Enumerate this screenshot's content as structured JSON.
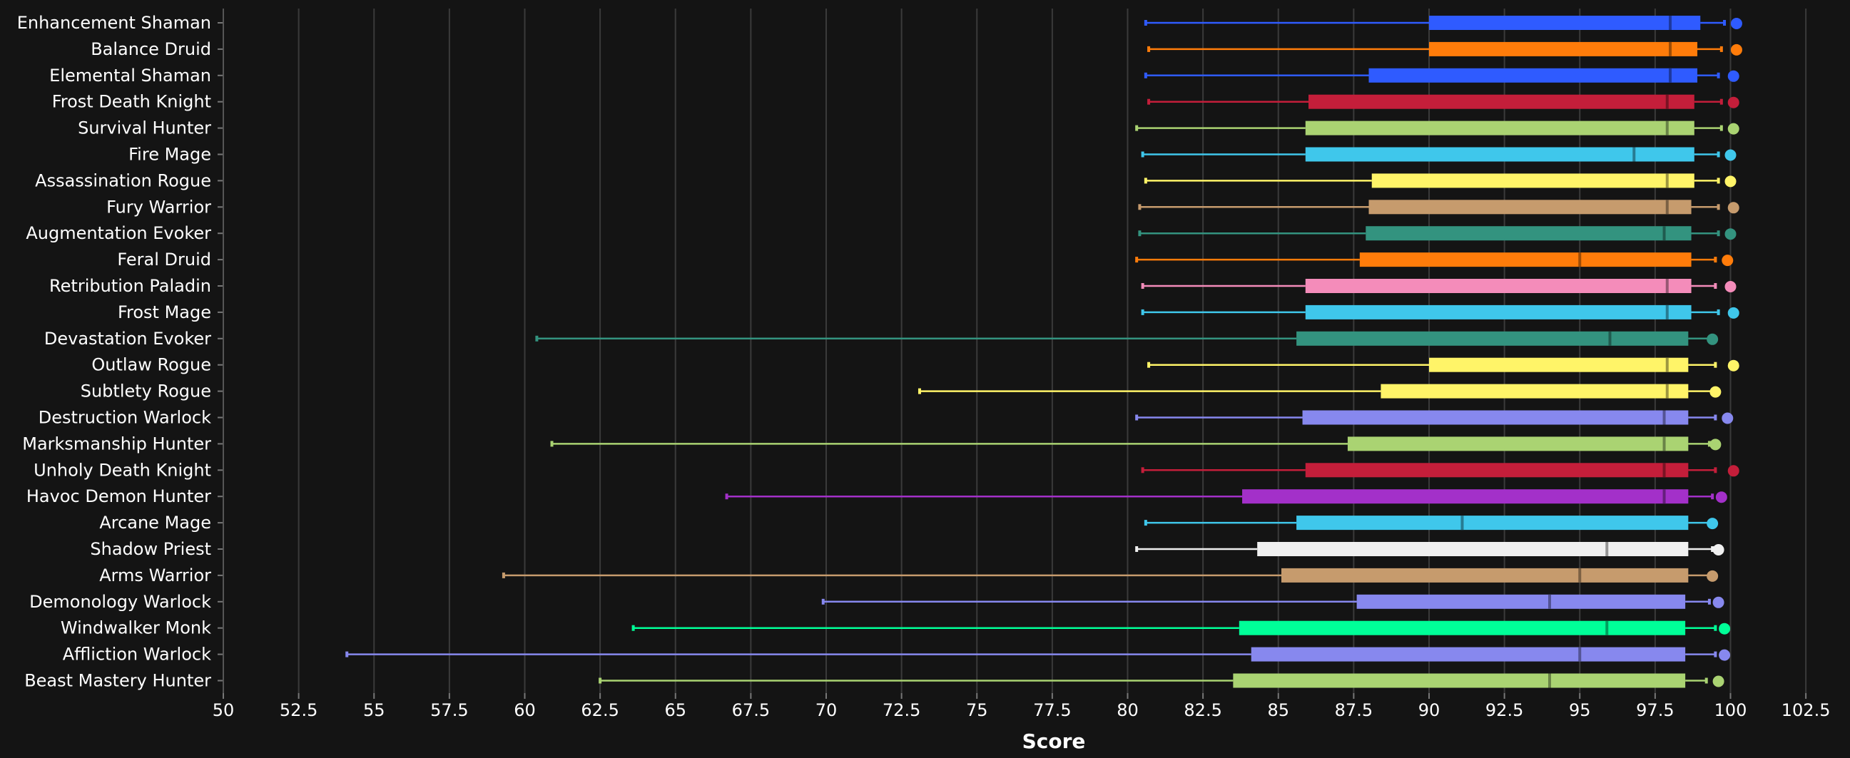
{
  "chart_data": {
    "type": "box",
    "xlabel": "Score",
    "title": "",
    "xlim": [
      50,
      102.5
    ],
    "xticks": [
      "50",
      "52.5",
      "55",
      "57.5",
      "60",
      "62.5",
      "65",
      "67.5",
      "70",
      "72.5",
      "75",
      "77.5",
      "80",
      "82.5",
      "85",
      "87.5",
      "90",
      "92.5",
      "95",
      "97.5",
      "100",
      "102.5"
    ],
    "grid": true,
    "series": [
      {
        "name": "Enhancement Shaman",
        "color": "#2f5bff",
        "min": 80.6,
        "q1": 90.0,
        "median": 98.0,
        "q3": 99.0,
        "max": 99.8,
        "max_point": 100.2
      },
      {
        "name": "Balance Druid",
        "color": "#ff7c0a",
        "min": 80.7,
        "q1": 90.0,
        "median": 98.0,
        "q3": 98.9,
        "max": 99.7,
        "max_point": 100.2
      },
      {
        "name": "Elemental Shaman",
        "color": "#2f5bff",
        "min": 80.6,
        "q1": 88.0,
        "median": 98.0,
        "q3": 98.9,
        "max": 99.6,
        "max_point": 100.1
      },
      {
        "name": "Frost Death Knight",
        "color": "#c41e3a",
        "min": 80.7,
        "q1": 86.0,
        "median": 97.9,
        "q3": 98.8,
        "max": 99.7,
        "max_point": 100.1
      },
      {
        "name": "Survival Hunter",
        "color": "#aad372",
        "min": 80.3,
        "q1": 85.9,
        "median": 97.9,
        "q3": 98.8,
        "max": 99.7,
        "max_point": 100.1
      },
      {
        "name": "Fire Mage",
        "color": "#3fc7eb",
        "min": 80.5,
        "q1": 85.9,
        "median": 96.8,
        "q3": 98.8,
        "max": 99.6,
        "max_point": 100.0
      },
      {
        "name": "Assassination Rogue",
        "color": "#fff468",
        "min": 80.6,
        "q1": 88.1,
        "median": 97.9,
        "q3": 98.8,
        "max": 99.6,
        "max_point": 100.0
      },
      {
        "name": "Fury Warrior",
        "color": "#c69b6d",
        "min": 80.4,
        "q1": 88.0,
        "median": 97.9,
        "q3": 98.7,
        "max": 99.6,
        "max_point": 100.1
      },
      {
        "name": "Augmentation Evoker",
        "color": "#33937f",
        "min": 80.4,
        "q1": 87.9,
        "median": 97.8,
        "q3": 98.7,
        "max": 99.6,
        "max_point": 100.0
      },
      {
        "name": "Feral Druid",
        "color": "#ff7c0a",
        "min": 80.3,
        "q1": 87.7,
        "median": 95.0,
        "q3": 98.7,
        "max": 99.5,
        "max_point": 99.9
      },
      {
        "name": "Retribution Paladin",
        "color": "#f48cba",
        "min": 80.5,
        "q1": 85.9,
        "median": 97.9,
        "q3": 98.7,
        "max": 99.5,
        "max_point": 100.0
      },
      {
        "name": "Frost Mage",
        "color": "#3fc7eb",
        "min": 80.5,
        "q1": 85.9,
        "median": 97.9,
        "q3": 98.7,
        "max": 99.6,
        "max_point": 100.1
      },
      {
        "name": "Devastation Evoker",
        "color": "#33937f",
        "min": 60.4,
        "q1": 85.6,
        "median": 96.0,
        "q3": 98.6,
        "max": 99.4,
        "max_point": 99.4
      },
      {
        "name": "Outlaw Rogue",
        "color": "#fff468",
        "min": 80.7,
        "q1": 90.0,
        "median": 97.9,
        "q3": 98.6,
        "max": 99.5,
        "max_point": 100.1
      },
      {
        "name": "Subtlety Rogue",
        "color": "#fff468",
        "min": 73.1,
        "q1": 88.4,
        "median": 97.9,
        "q3": 98.6,
        "max": 99.4,
        "max_point": 99.5
      },
      {
        "name": "Destruction Warlock",
        "color": "#8788ee",
        "min": 80.3,
        "q1": 85.8,
        "median": 97.8,
        "q3": 98.6,
        "max": 99.5,
        "max_point": 99.9
      },
      {
        "name": "Marksmanship Hunter",
        "color": "#aad372",
        "min": 60.9,
        "q1": 87.3,
        "median": 97.8,
        "q3": 98.6,
        "max": 99.3,
        "max_point": 99.5
      },
      {
        "name": "Unholy Death Knight",
        "color": "#c41e3a",
        "min": 80.5,
        "q1": 85.9,
        "median": 97.8,
        "q3": 98.6,
        "max": 99.5,
        "max_point": 100.1
      },
      {
        "name": "Havoc Demon Hunter",
        "color": "#a330c9",
        "min": 66.7,
        "q1": 83.8,
        "median": 97.8,
        "q3": 98.6,
        "max": 99.4,
        "max_point": 99.7
      },
      {
        "name": "Arcane Mage",
        "color": "#3fc7eb",
        "min": 80.6,
        "q1": 85.6,
        "median": 91.1,
        "q3": 98.6,
        "max": 99.3,
        "max_point": 99.4
      },
      {
        "name": "Shadow Priest",
        "color": "#f0f0f0",
        "min": 80.3,
        "q1": 84.3,
        "median": 95.9,
        "q3": 98.6,
        "max": 99.4,
        "max_point": 99.6
      },
      {
        "name": "Arms Warrior",
        "color": "#c69b6d",
        "min": 59.3,
        "q1": 85.1,
        "median": 95.0,
        "q3": 98.6,
        "max": 99.3,
        "max_point": 99.4
      },
      {
        "name": "Demonology Warlock",
        "color": "#8788ee",
        "min": 69.9,
        "q1": 87.6,
        "median": 94.0,
        "q3": 98.5,
        "max": 99.3,
        "max_point": 99.6
      },
      {
        "name": "Windwalker Monk",
        "color": "#00ff98",
        "min": 63.6,
        "q1": 83.7,
        "median": 95.9,
        "q3": 98.5,
        "max": 99.5,
        "max_point": 99.8
      },
      {
        "name": "Affliction Warlock",
        "color": "#8788ee",
        "min": 54.1,
        "q1": 84.1,
        "median": 95.0,
        "q3": 98.5,
        "max": 99.5,
        "max_point": 99.8
      },
      {
        "name": "Beast Mastery Hunter",
        "color": "#aad372",
        "min": 62.5,
        "q1": 83.5,
        "median": 94.0,
        "q3": 98.5,
        "max": 99.2,
        "max_point": 99.6
      }
    ]
  }
}
